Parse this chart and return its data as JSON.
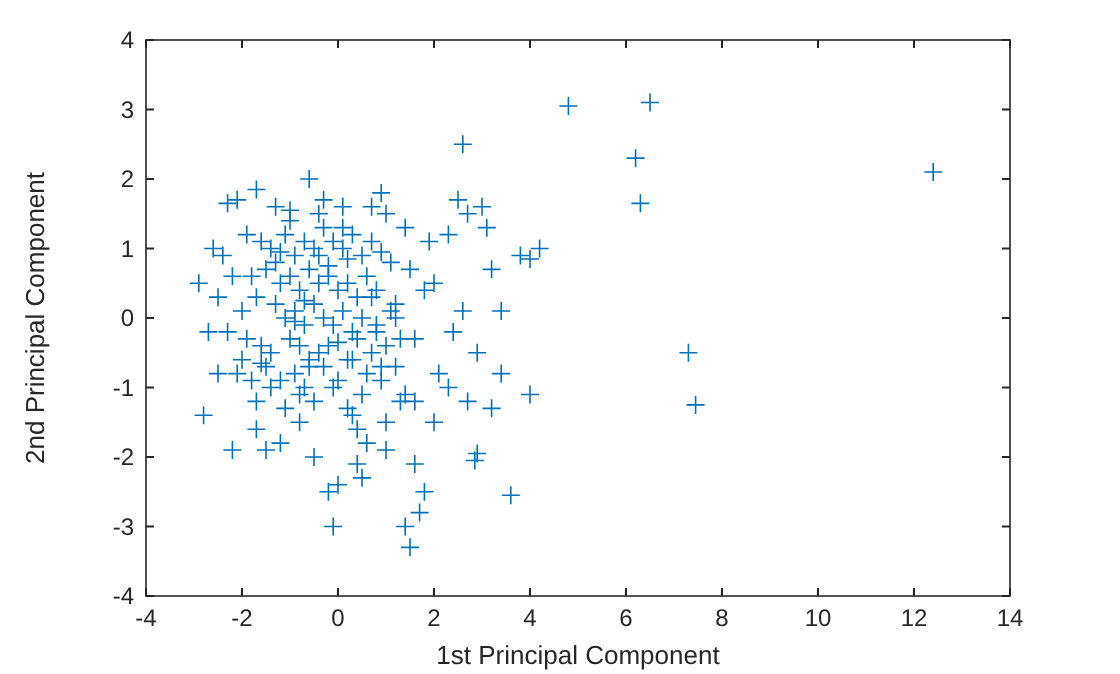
{
  "chart_data": {
    "type": "scatter",
    "xlabel": "1st Principal Component",
    "ylabel": "2nd Principal Component",
    "xlim": [
      -4,
      14
    ],
    "xticks": [
      -4,
      -2,
      0,
      2,
      4,
      6,
      8,
      10,
      12,
      14
    ],
    "ylim": [
      -4,
      4
    ],
    "yticks": [
      -4,
      -3,
      -2,
      -1,
      0,
      1,
      2,
      3,
      4
    ],
    "grid": false,
    "marker": "cross",
    "series": [
      {
        "color": "#0072bd",
        "x": [
          4.8,
          6.5,
          6.2,
          6.3,
          2.6,
          12.4,
          7.3,
          7.45,
          4.2,
          4.0,
          3.6,
          2.9,
          2.85,
          -2.3,
          -2.1,
          -1.7,
          -1.3,
          -0.6,
          -0.3,
          0.1,
          0.7,
          0.9,
          1.0,
          -1.0,
          -0.4,
          2.5,
          2.7,
          2.3,
          1.4,
          1.9,
          3.1,
          3.0,
          3.8,
          3.4,
          2.6,
          2.4,
          2.9,
          3.4,
          4.0,
          3.2,
          2.7,
          2.1,
          1.6,
          1.8,
          2.0,
          3.2,
          1.5,
          -2.8,
          -2.2,
          -1.5,
          -1.7,
          -1.2,
          -0.8,
          -0.5,
          -0.2,
          0.0,
          -0.1,
          0.4,
          0.5,
          0.6,
          0.3,
          1.0,
          1.6,
          1.8,
          1.4,
          1.5,
          1.7,
          2.0,
          2.3,
          1.3,
          0.9,
          1.0,
          1.6,
          -2.5,
          -2.0,
          -2.3,
          -2.9,
          -2.7,
          -2.5,
          -2.4,
          -2.2,
          -2.6,
          -1.9,
          -1.6,
          -1.4,
          -1.1,
          -0.9,
          -0.7,
          -0.5,
          -0.3,
          -0.1,
          0.1,
          0.3,
          0.5,
          0.7,
          0.9,
          1.1,
          -1.8,
          -1.5,
          -1.2,
          -1.0,
          -0.8,
          -0.6,
          -0.4,
          -0.2,
          0.0,
          0.2,
          0.4,
          0.6,
          0.8,
          1.2,
          -2.0,
          -1.7,
          -1.3,
          -1.1,
          -0.9,
          -0.7,
          -0.5,
          -0.3,
          -0.1,
          0.1,
          0.3,
          0.5,
          0.8,
          1.1,
          1.3,
          -1.9,
          -1.6,
          -1.4,
          -1.0,
          -0.8,
          -0.6,
          -0.4,
          -0.2,
          0.2,
          0.4,
          0.7,
          1.0,
          1.2,
          -2.1,
          -1.8,
          -1.5,
          -1.2,
          -0.9,
          -0.7,
          -0.3,
          0.0,
          0.3,
          0.6,
          0.9,
          1.4,
          -1.7,
          -1.4,
          -1.1,
          -0.8,
          -0.5,
          -0.1,
          0.2,
          0.5,
          0.8,
          -1.3,
          -1.0,
          -0.6,
          -0.4,
          0.1,
          0.4,
          0.7,
          1.2,
          -1.6,
          -0.9,
          -0.2,
          0.2,
          -1.2,
          -0.7,
          0.0
        ],
        "values": [
          3.05,
          3.1,
          2.3,
          1.65,
          2.5,
          2.1,
          -0.5,
          -1.25,
          1.0,
          0.85,
          -2.55,
          -1.95,
          -2.05,
          1.65,
          1.7,
          1.85,
          1.6,
          2.0,
          1.7,
          1.6,
          1.6,
          1.8,
          1.5,
          1.55,
          1.5,
          1.7,
          1.5,
          1.2,
          1.3,
          1.1,
          1.3,
          1.6,
          0.9,
          0.1,
          0.1,
          -0.2,
          -0.5,
          -0.8,
          -1.1,
          -1.3,
          -1.2,
          -0.8,
          -0.3,
          0.4,
          0.5,
          0.7,
          0.7,
          -1.4,
          -1.9,
          -1.9,
          -1.6,
          -1.8,
          -1.5,
          -2.0,
          -2.5,
          -2.4,
          -3.0,
          -2.1,
          -2.3,
          -1.8,
          -1.4,
          -1.9,
          -2.1,
          -2.5,
          -3.0,
          -3.3,
          -2.8,
          -1.5,
          -1.0,
          -1.2,
          -0.9,
          -1.5,
          -1.2,
          -0.8,
          -0.6,
          -0.2,
          0.5,
          -0.2,
          0.3,
          0.9,
          0.6,
          1.0,
          1.2,
          1.1,
          1.0,
          1.2,
          0.9,
          1.1,
          1.0,
          1.3,
          1.1,
          1.0,
          1.2,
          0.9,
          1.1,
          0.95,
          0.8,
          0.6,
          0.7,
          0.5,
          0.6,
          0.4,
          0.7,
          0.5,
          0.6,
          0.4,
          0.5,
          0.3,
          0.6,
          0.4,
          0.2,
          0.1,
          0.3,
          0.2,
          0.0,
          0.1,
          -0.1,
          0.2,
          0.0,
          -0.1,
          0.1,
          -0.2,
          0.0,
          -0.1,
          0.1,
          -0.3,
          -0.3,
          -0.4,
          -0.5,
          -0.3,
          -0.4,
          -0.6,
          -0.5,
          -0.4,
          -0.6,
          -0.3,
          -0.5,
          -0.4,
          -0.7,
          -0.8,
          -0.9,
          -0.7,
          -0.9,
          -0.8,
          -1.0,
          -0.7,
          -0.9,
          -0.6,
          -0.8,
          -0.7,
          -1.1,
          -1.2,
          -1.0,
          -1.3,
          -1.1,
          -1.2,
          -1.0,
          -1.3,
          -1.1,
          -0.2,
          0.8,
          1.4,
          -0.7,
          0.9,
          1.3,
          -1.6,
          0.3,
          0.0,
          -0.65,
          -0.05,
          0.75,
          0.85,
          0.95,
          0.25,
          -0.35
        ]
      }
    ]
  }
}
